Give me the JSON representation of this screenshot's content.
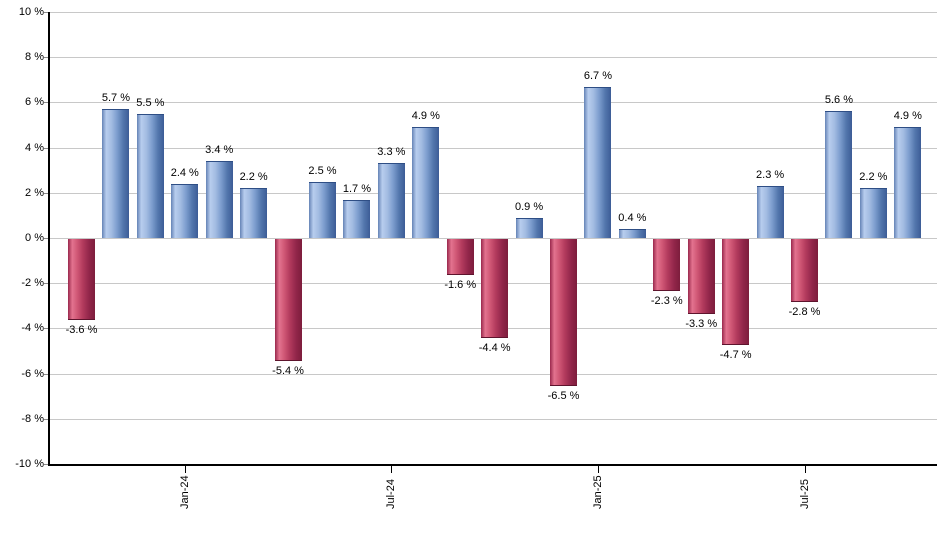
{
  "chart_data": {
    "type": "bar",
    "title": "",
    "xlabel": "",
    "ylabel": "",
    "ylim": [
      -10,
      10
    ],
    "y_tick_step": 2,
    "grid": true,
    "legend": null,
    "value_suffix": " %",
    "y_tick_labels": [
      "10 %",
      "8 %",
      "6 %",
      "4 %",
      "2 %",
      "0 %",
      "-2 %",
      "-4 %",
      "-6 %",
      "-8 %",
      "-10 %"
    ],
    "x_tick_labels": [
      {
        "label": "Jan-24",
        "bar_index": 3
      },
      {
        "label": "Jul-24",
        "bar_index": 9
      },
      {
        "label": "Jan-25",
        "bar_index": 15
      },
      {
        "label": "Jul-25",
        "bar_index": 21
      }
    ],
    "bars": [
      {
        "value": -3.6,
        "label": "-3.6 %",
        "color": "negative"
      },
      {
        "value": 5.7,
        "label": "5.7 %",
        "color": "positive"
      },
      {
        "value": 5.5,
        "label": "5.5 %",
        "color": "positive"
      },
      {
        "value": 2.4,
        "label": "2.4 %",
        "color": "positive"
      },
      {
        "value": 3.4,
        "label": "3.4 %",
        "color": "positive"
      },
      {
        "value": 2.2,
        "label": "2.2 %",
        "color": "positive"
      },
      {
        "value": -5.4,
        "label": "-5.4 %",
        "color": "negative"
      },
      {
        "value": 2.5,
        "label": "2.5 %",
        "color": "positive"
      },
      {
        "value": 1.7,
        "label": "1.7 %",
        "color": "positive"
      },
      {
        "value": 3.3,
        "label": "3.3 %",
        "color": "positive"
      },
      {
        "value": 4.9,
        "label": "4.9 %",
        "color": "positive"
      },
      {
        "value": -1.6,
        "label": "-1.6 %",
        "color": "negative"
      },
      {
        "value": -4.4,
        "label": "-4.4 %",
        "color": "negative"
      },
      {
        "value": 0.9,
        "label": "0.9 %",
        "color": "positive"
      },
      {
        "value": -6.5,
        "label": "-6.5 %",
        "color": "negative"
      },
      {
        "value": 6.7,
        "label": "6.7 %",
        "color": "positive"
      },
      {
        "value": 0.4,
        "label": "0.4 %",
        "color": "positive"
      },
      {
        "value": -2.3,
        "label": "-2.3 %",
        "color": "negative"
      },
      {
        "value": -3.3,
        "label": "-3.3 %",
        "color": "negative"
      },
      {
        "value": -4.7,
        "label": "-4.7 %",
        "color": "negative"
      },
      {
        "value": 2.3,
        "label": "2.3 %",
        "color": "positive"
      },
      {
        "value": -2.8,
        "label": "-2.8 %",
        "color": "negative"
      },
      {
        "value": 5.6,
        "label": "5.6 %",
        "color": "positive"
      },
      {
        "value": 2.2,
        "label": "2.2 %",
        "color": "positive"
      },
      {
        "value": 4.9,
        "label": "4.9 %",
        "color": "positive"
      }
    ]
  },
  "colors": {
    "positive_gradient": [
      "#6583b6",
      "#b8cdee",
      "#a3bce2",
      "#7e9ecf",
      "#5377ad",
      "#3c5c96"
    ],
    "negative_gradient": [
      "#99284c",
      "#e3738f",
      "#cf5674",
      "#b23a5d",
      "#92264a",
      "#7d1d3c"
    ],
    "positive_cap": "#2e4e85",
    "negative_cap": "#5e142d",
    "gridline": "#c8c8c8",
    "axis_line": "#000000",
    "tick": "#000000",
    "y_tick": "#8a8a8a",
    "text": "#000000",
    "background": "#ffffff"
  }
}
